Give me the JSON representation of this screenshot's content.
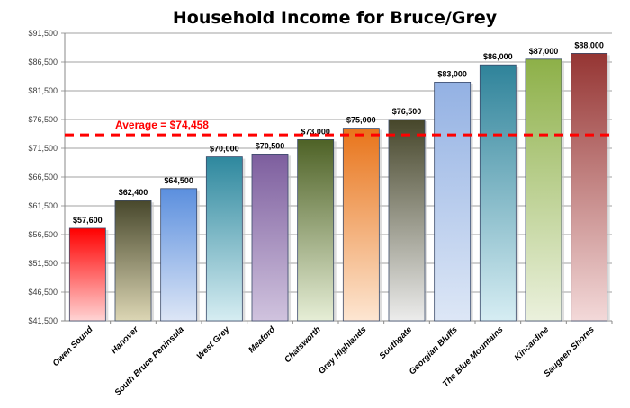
{
  "chart_data": {
    "type": "bar",
    "title": "Household Income for Bruce/Grey",
    "xlabel": "",
    "ylabel": "",
    "ylim": [
      41500,
      91500
    ],
    "ytick_step": 5000,
    "yticks": [
      "$41,500",
      "$46,500",
      "$51,500",
      "$56,500",
      "$61,500",
      "$66,500",
      "$71,500",
      "$76,500",
      "$81,500",
      "$86,500",
      "$91,500"
    ],
    "grid": true,
    "categories": [
      "Owen Sound",
      "Hanover",
      "South Bruce Peninsula",
      "West Grey",
      "Meaford",
      "Chatsworth",
      "Grey Highlands",
      "Southgate",
      "Georgian Bluffs",
      "The Blue Mountains",
      "Kincardine",
      "Saugeen Shores"
    ],
    "values": [
      57600,
      62400,
      64500,
      70000,
      70500,
      73000,
      75000,
      76500,
      83000,
      86000,
      87000,
      88000
    ],
    "data_labels": [
      "$57,600",
      "$62,400",
      "$64,500",
      "$70,000",
      "$70,500",
      "$73,000",
      "$75,000",
      "$76,500",
      "$83,000",
      "$86,000",
      "$87,000",
      "$88,000"
    ],
    "colors": [
      [
        "#ff0000",
        "#ffd4d4"
      ],
      [
        "#48482c",
        "#dcd6b4"
      ],
      [
        "#5b8fde",
        "#dde6f6"
      ],
      [
        "#2e889e",
        "#d6edf2"
      ],
      [
        "#7d5e9e",
        "#d0c3de"
      ],
      [
        "#4e6226",
        "#e6eed6"
      ],
      [
        "#e8741a",
        "#fde6d2"
      ],
      [
        "#46462a",
        "#ececec"
      ],
      [
        "#93b1e3",
        "#dde7f6"
      ],
      [
        "#2f839a",
        "#d6edf3"
      ],
      [
        "#8db048",
        "#ebf1dd"
      ],
      [
        "#953533",
        "#f3d9d9"
      ]
    ],
    "average": {
      "value": 74458,
      "label": "Average = $74,458",
      "color": "#ff0000"
    }
  }
}
